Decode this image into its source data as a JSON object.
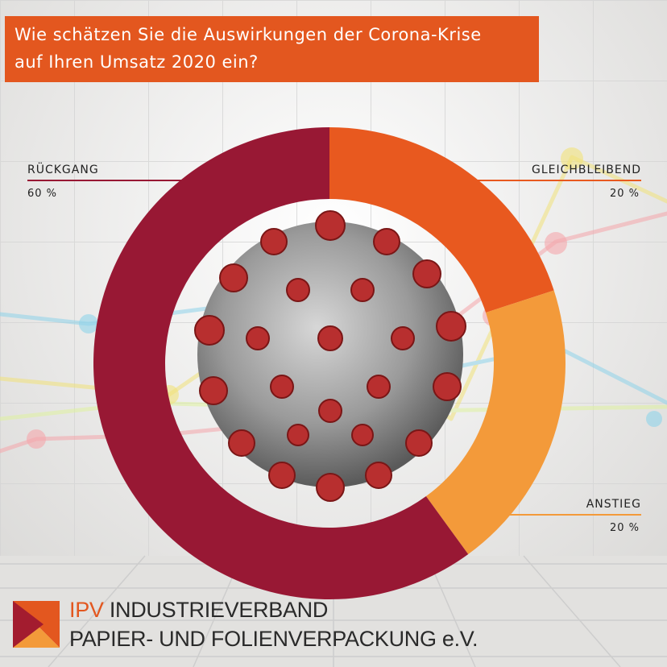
{
  "title": {
    "line1": "Wie schätzen Sie die Auswirkungen der Corona-Krise",
    "line2": "auf Ihren Umsatz 2020 ein?"
  },
  "chart_data": {
    "type": "pie",
    "style": "donut",
    "slices": [
      {
        "label": "GLEICHBLEIBEND",
        "value": 20,
        "value_label": "20 %",
        "color": "#e8591f"
      },
      {
        "label": "ANSTIEG",
        "value": 20,
        "value_label": "20 %",
        "color": "#f39a3a"
      },
      {
        "label": "RÜCKGANG",
        "value": 60,
        "value_label": "60 %",
        "color": "#981834"
      }
    ],
    "start_angle_deg": 0,
    "direction": "clockwise"
  },
  "logo": {
    "brand": "IPV",
    "line1_rest": " INDUSTRIEVERBAND",
    "line2": "PAPIER- UND FOLIENVERPACKUNG e.V.",
    "colors": {
      "orange": "#e3571f",
      "red": "#a31c2f",
      "dark": "#2a2a2a"
    }
  }
}
